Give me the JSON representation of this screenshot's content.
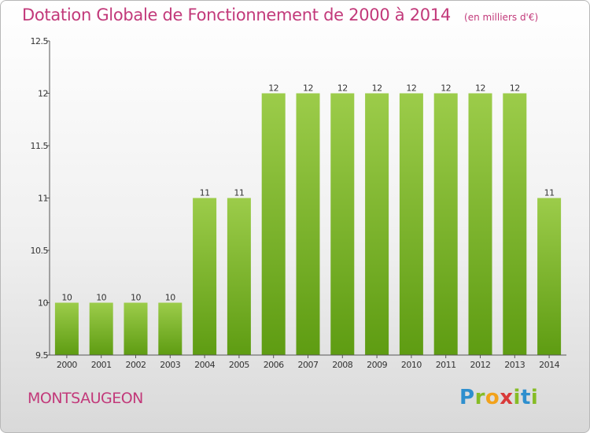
{
  "title": "Dotation Globale de Fonctionnement de 2000 à 2014",
  "unit": "(en milliers d'€)",
  "commune": "MONTSAUGEON",
  "logo": "Proxiti",
  "colors": {
    "title": "#c2397a",
    "bar_top": "#9ccc4a",
    "bar_bottom": "#5e9c12",
    "axis": "#555555",
    "text": "#333333"
  },
  "chart_data": {
    "type": "bar",
    "title": "Dotation Globale de Fonctionnement de 2000 à 2014",
    "subtitle": "(en milliers d'€)",
    "xlabel": "",
    "ylabel": "",
    "categories": [
      "2000",
      "2001",
      "2002",
      "2003",
      "2004",
      "2005",
      "2006",
      "2007",
      "2008",
      "2009",
      "2010",
      "2011",
      "2012",
      "2013",
      "2014"
    ],
    "values": [
      10,
      10,
      10,
      10,
      11,
      11,
      12,
      12,
      12,
      12,
      12,
      12,
      12,
      12,
      11
    ],
    "data_labels": [
      "10",
      "10",
      "10",
      "10",
      "11",
      "11",
      "12",
      "12",
      "12",
      "12",
      "12",
      "12",
      "12",
      "12",
      "11"
    ],
    "ylim": [
      9.5,
      12.5
    ],
    "yticks": [
      9.5,
      10,
      10.5,
      11,
      11.5,
      12,
      12.5
    ],
    "ytick_labels": [
      "9.5",
      "10",
      "10.5",
      "11",
      "11.5",
      "12",
      "12.5"
    ],
    "grid": false
  }
}
